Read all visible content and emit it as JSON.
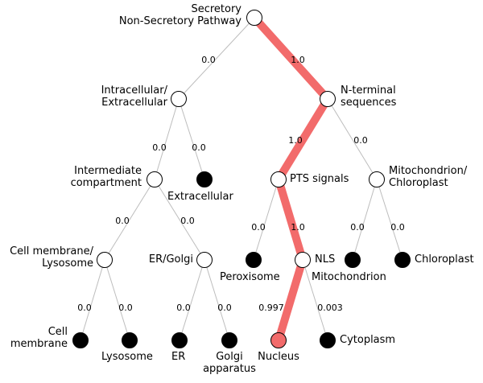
{
  "colors": {
    "highlight": "#f26b6b",
    "edge": "#bdbdbd",
    "node_outline": "#000000",
    "leaf_fill": "#000000",
    "highlight_node_fill": "#f26b6b"
  },
  "nodes": {
    "root": {
      "label_lines": [
        "Secretory",
        "Non-Secretory Pathway"
      ]
    },
    "intracellular": {
      "label_lines": [
        "Intracellular/",
        "Extracellular"
      ]
    },
    "nterminal": {
      "label_lines": [
        "N-terminal",
        "sequences"
      ]
    },
    "intermediate": {
      "label_lines": [
        "Intermediate",
        "compartment"
      ]
    },
    "extracellular": {
      "label_lines": [
        "Extracellular"
      ]
    },
    "pts": {
      "label_lines": [
        "PTS signals"
      ]
    },
    "mito_chloro": {
      "label_lines": [
        "Mitochondrion/",
        "Chloroplast"
      ]
    },
    "cellmem_lyso": {
      "label_lines": [
        "Cell membrane/",
        "Lysosome"
      ]
    },
    "er_golgi": {
      "label_lines": [
        "ER/Golgi"
      ]
    },
    "peroxisome": {
      "label_lines": [
        "Peroxisome"
      ]
    },
    "nls": {
      "label_lines": [
        "NLS"
      ]
    },
    "mitochondrion": {
      "label_lines": [
        "Mitochondrion"
      ]
    },
    "chloroplast": {
      "label_lines": [
        "Chloroplast"
      ]
    },
    "cell_membrane": {
      "label_lines": [
        "Cell",
        "membrane"
      ]
    },
    "lysosome": {
      "label_lines": [
        "Lysosome"
      ]
    },
    "er": {
      "label_lines": [
        "ER"
      ]
    },
    "golgi": {
      "label_lines": [
        "Golgi",
        "apparatus"
      ]
    },
    "nucleus": {
      "label_lines": [
        "Nucleus"
      ]
    },
    "cytoplasm": {
      "label_lines": [
        "Cytoplasm"
      ]
    }
  },
  "edges": [
    {
      "id": "root-intracellular",
      "prob": "0.0",
      "highlight": false
    },
    {
      "id": "root-nterminal",
      "prob": "1.0",
      "highlight": true
    },
    {
      "id": "intracellular-intermediate",
      "prob": "0.0",
      "highlight": false
    },
    {
      "id": "intracellular-extracellular",
      "prob": "0.0",
      "highlight": false
    },
    {
      "id": "nterminal-pts",
      "prob": "1.0",
      "highlight": true
    },
    {
      "id": "nterminal-mito_chloro",
      "prob": "0.0",
      "highlight": false
    },
    {
      "id": "intermediate-cellmem_lyso",
      "prob": "0.0",
      "highlight": false
    },
    {
      "id": "intermediate-er_golgi",
      "prob": "0.0",
      "highlight": false
    },
    {
      "id": "pts-peroxisome",
      "prob": "0.0",
      "highlight": false
    },
    {
      "id": "pts-nls",
      "prob": "1.0",
      "highlight": true
    },
    {
      "id": "mito_chloro-mitochondrion",
      "prob": "0.0",
      "highlight": false
    },
    {
      "id": "mito_chloro-chloroplast",
      "prob": "0.0",
      "highlight": false
    },
    {
      "id": "cellmem_lyso-cell_membrane",
      "prob": "0.0",
      "highlight": false
    },
    {
      "id": "cellmem_lyso-lysosome",
      "prob": "0.0",
      "highlight": false
    },
    {
      "id": "er_golgi-er",
      "prob": "0.0",
      "highlight": false
    },
    {
      "id": "er_golgi-golgi",
      "prob": "0.0",
      "highlight": false
    },
    {
      "id": "nls-nucleus",
      "prob": "0.997",
      "highlight": true
    },
    {
      "id": "nls-cytoplasm",
      "prob": "0.003",
      "highlight": false
    }
  ]
}
